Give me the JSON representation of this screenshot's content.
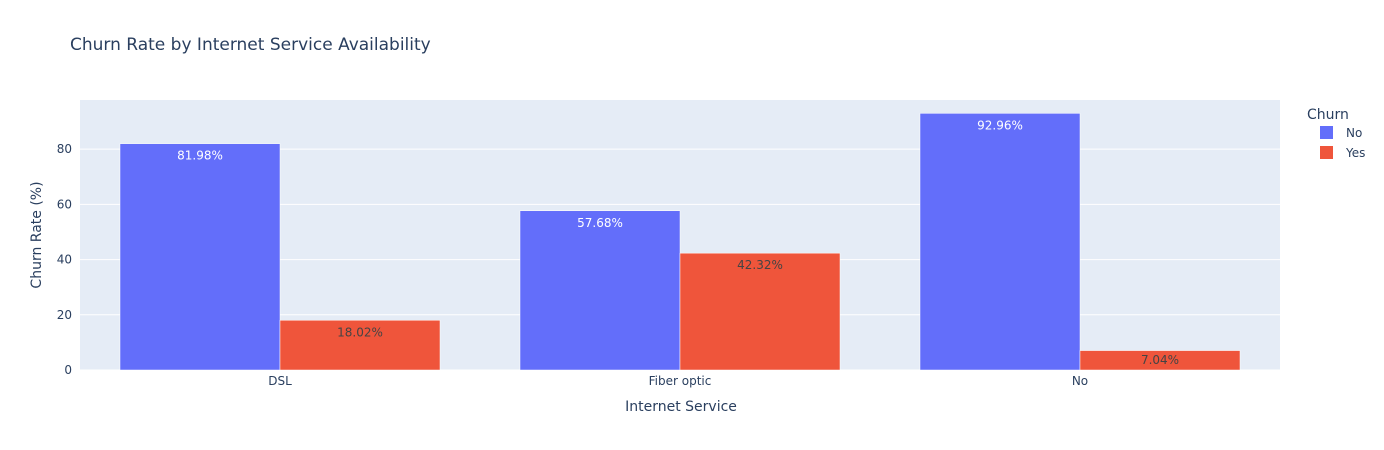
{
  "chart_data": {
    "type": "bar",
    "title": "Churn Rate by Internet Service Availability",
    "xlabel": "Internet Service",
    "ylabel": "Churn Rate (%)",
    "categories": [
      "DSL",
      "Fiber optic",
      "No"
    ],
    "ylim": [
      0,
      97.8
    ],
    "yticks": [
      0,
      20,
      40,
      60,
      80
    ],
    "grid": true,
    "barmode": "group",
    "legend": {
      "title": "Churn",
      "placement": "top-right",
      "entries": [
        "No",
        "Yes"
      ]
    },
    "series": [
      {
        "name": "No",
        "color": "#636efa",
        "values": [
          81.98,
          57.68,
          92.96
        ],
        "labels": [
          "81.98%",
          "57.68%",
          "92.96%"
        ]
      },
      {
        "name": "Yes",
        "color": "#ef553b",
        "values": [
          18.02,
          42.32,
          7.04
        ],
        "labels": [
          "18.02%",
          "42.32%",
          "7.04%"
        ]
      }
    ]
  },
  "colors": {
    "plot_background": "#e5ecf6",
    "grid": "#ffffff",
    "text": "#2a3f5f",
    "label_on_blue": "#ffffff",
    "label_on_red": "#444444"
  }
}
